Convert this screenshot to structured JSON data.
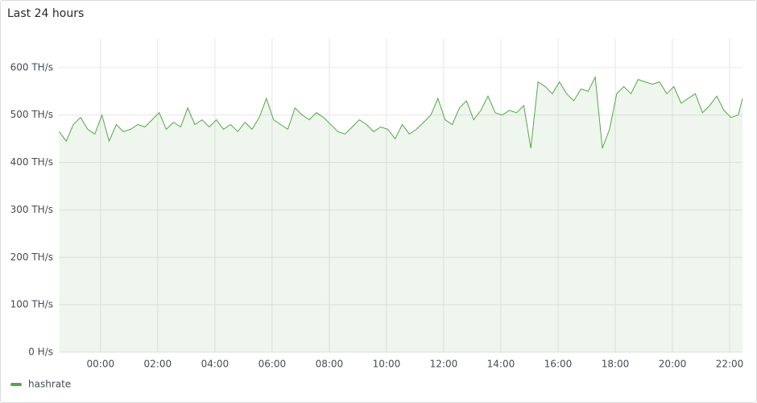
{
  "chart_data": {
    "type": "line",
    "title": "Last 24 hours",
    "x": [
      -1.45,
      -1.2,
      -0.95,
      -0.7,
      -0.45,
      -0.2,
      0.05,
      0.3,
      0.55,
      0.8,
      1.05,
      1.3,
      1.55,
      1.8,
      2.05,
      2.3,
      2.55,
      2.8,
      3.05,
      3.3,
      3.55,
      3.8,
      4.05,
      4.3,
      4.55,
      4.8,
      5.05,
      5.3,
      5.55,
      5.8,
      6.05,
      6.3,
      6.55,
      6.8,
      7.05,
      7.3,
      7.55,
      7.8,
      8.05,
      8.3,
      8.55,
      8.8,
      9.05,
      9.3,
      9.55,
      9.8,
      10.05,
      10.3,
      10.55,
      10.8,
      11.05,
      11.3,
      11.55,
      11.8,
      12.05,
      12.3,
      12.55,
      12.8,
      13.05,
      13.3,
      13.55,
      13.8,
      14.05,
      14.3,
      14.55,
      14.8,
      15.05,
      15.3,
      15.55,
      15.8,
      16.05,
      16.3,
      16.55,
      16.8,
      17.05,
      17.3,
      17.55,
      17.8,
      18.05,
      18.3,
      18.55,
      18.8,
      19.05,
      19.3,
      19.55,
      19.8,
      20.05,
      20.3,
      20.55,
      20.8,
      21.05,
      21.3,
      21.55,
      21.8,
      22.05,
      22.3,
      22.45
    ],
    "series": [
      {
        "name": "hashrate",
        "color": "#56a64b",
        "values": [
          465,
          445,
          480,
          495,
          470,
          460,
          500,
          445,
          480,
          465,
          470,
          480,
          475,
          490,
          505,
          470,
          485,
          475,
          515,
          480,
          490,
          475,
          490,
          470,
          480,
          465,
          485,
          470,
          495,
          535,
          490,
          480,
          470,
          515,
          500,
          490,
          505,
          495,
          480,
          465,
          460,
          475,
          490,
          480,
          465,
          475,
          470,
          450,
          480,
          460,
          470,
          485,
          500,
          535,
          490,
          480,
          515,
          530,
          490,
          510,
          540,
          505,
          500,
          510,
          505,
          520,
          430,
          570,
          560,
          545,
          570,
          545,
          530,
          555,
          550,
          580,
          430,
          470,
          545,
          560,
          545,
          575,
          570,
          565,
          570,
          545,
          560,
          525,
          535,
          545,
          505,
          520,
          540,
          510,
          495,
          500,
          535
        ]
      }
    ],
    "xlim": [
      -1.46,
      22.45
    ],
    "xticks": [
      {
        "value": 0,
        "label": "00:00"
      },
      {
        "value": 2,
        "label": "02:00"
      },
      {
        "value": 4,
        "label": "04:00"
      },
      {
        "value": 6,
        "label": "06:00"
      },
      {
        "value": 8,
        "label": "08:00"
      },
      {
        "value": 10,
        "label": "10:00"
      },
      {
        "value": 12,
        "label": "12:00"
      },
      {
        "value": 14,
        "label": "14:00"
      },
      {
        "value": 16,
        "label": "16:00"
      },
      {
        "value": 18,
        "label": "18:00"
      },
      {
        "value": 20,
        "label": "20:00"
      },
      {
        "value": 22,
        "label": "22:00"
      }
    ],
    "ylim": [
      0,
      661
    ],
    "yticks": [
      {
        "value": 0,
        "label": "0 H/s"
      },
      {
        "value": 100,
        "label": "100 TH/s"
      },
      {
        "value": 200,
        "label": "200 TH/s"
      },
      {
        "value": 300,
        "label": "300 TH/s"
      },
      {
        "value": 400,
        "label": "400 TH/s"
      },
      {
        "value": 500,
        "label": "500 TH/s"
      },
      {
        "value": 600,
        "label": "600 TH/s"
      }
    ],
    "grid": true,
    "legend": "bottom-left"
  }
}
